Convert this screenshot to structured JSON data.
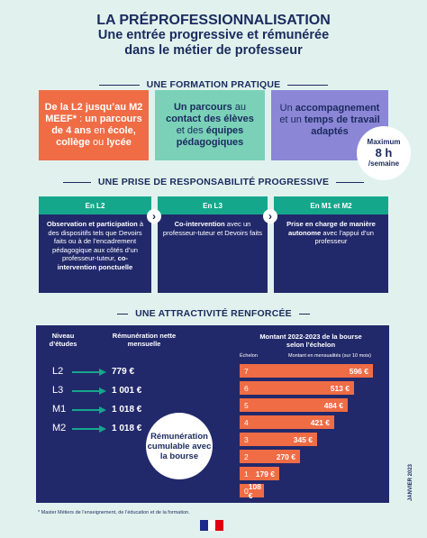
{
  "title": {
    "line1": "LA PRÉPROFESSIONNALISATION",
    "line2": "Une entrée progressive et rémunérée",
    "line3": "dans le métier de professeur"
  },
  "section1": {
    "heading": "UNE FORMATION PRATIQUE",
    "card1": {
      "bold1": "De la L2 jusqu’au M2 MEEF*",
      "text1": " : ",
      "bold2": "un parcours de 4 ans",
      "text2": " en ",
      "bold3": "école, collège",
      "text3": " ou ",
      "bold4": "lycée"
    },
    "card2": {
      "bold1": "Un parcours",
      "text1": " au ",
      "bold2": "contact des élèves",
      "text2": " et des ",
      "bold3": "équipes pédagogiques"
    },
    "card3": {
      "text1": "Un ",
      "bold1": "accompagnement",
      "text2": " et un ",
      "bold2": "temps de travail adaptés"
    },
    "badge": {
      "line1": "Maximum",
      "line2": "8 h",
      "line3": "/semaine"
    }
  },
  "section2": {
    "heading": "UNE PRISE DE RESPONSABILITÉ PROGRESSIVE",
    "steps": [
      {
        "head": "En L2",
        "bold1": "Observation et participation",
        "text1": " à des dispositifs tels que Devoirs faits ou à de l’encadrement pédagogique aux côtés d’un professeur-tuteur, ",
        "bold2": "co-intervention ponctuelle"
      },
      {
        "head": "En L3",
        "bold1": "Co-intervention",
        "text1": " avec un professeur-tuteur et Devoirs faits",
        "bold2": ""
      },
      {
        "head": "En M1 et M2",
        "bold1": "Prise en charge de manière autonome",
        "text1": " avec l’appui d’un professeur",
        "bold2": ""
      }
    ]
  },
  "section3": {
    "heading": "UNE ATTRACTIVITÉ RENFORCÉE",
    "col_level": "Niveau d’études",
    "col_pay": "Rémunération nette mensuelle",
    "levels": [
      {
        "level": "L2",
        "pay": "779 €"
      },
      {
        "level": "L3",
        "pay": "1 001 €"
      },
      {
        "level": "M1",
        "pay": "1 018 €"
      },
      {
        "level": "M2",
        "pay": "1 018 €"
      }
    ],
    "circle": "Rémunération cumulable avec la bourse",
    "chart_title": "Montant 2022-2023 de la bourse selon l’échelon",
    "col_echelon": "Échelon",
    "col_amount": "Montant en mensualités (sur 10 mois)"
  },
  "chart_data": {
    "type": "bar",
    "orientation": "horizontal",
    "title": "Montant 2022-2023 de la bourse selon l’échelon",
    "xlabel": "Montant en mensualités (sur 10 mois)",
    "ylabel": "Échelon",
    "categories": [
      "7",
      "6",
      "5",
      "4",
      "3",
      "2",
      "1",
      "0"
    ],
    "values": [
      596,
      513,
      484,
      421,
      345,
      270,
      179,
      108
    ],
    "labels": [
      "596 €",
      "513 €",
      "484 €",
      "421 €",
      "345 €",
      "270 €",
      "179 €",
      "108 €"
    ],
    "color": "#ef6c45"
  },
  "footnote": "* Master Métiers de l’enseignement, de l’éducation et de la formation.",
  "date_vertical": "JANVIER 2023",
  "colors": {
    "navy": "#22296a",
    "orange": "#ef6c45",
    "green": "#15a78c",
    "mint": "#7ad1b8",
    "purple": "#8b86d6",
    "background": "#e1f2ee"
  }
}
